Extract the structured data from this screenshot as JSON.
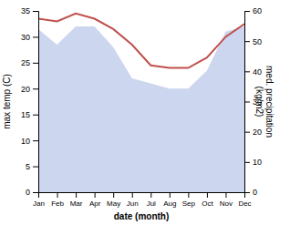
{
  "chart_data": {
    "type": "line",
    "x_label": "date (month)",
    "y_label": "max temp (C)",
    "y2_label": "med. precipitation\n(kg/m2)",
    "categories": [
      "Jan",
      "Feb",
      "Mar",
      "Apr",
      "May",
      "Jun",
      "Jul",
      "Aug",
      "Sep",
      "Oct",
      "Nov",
      "Dec"
    ],
    "series": [
      {
        "type": "area",
        "color": "#b8c4e8",
        "values": [
          31.5,
          28.5,
          32.0,
          32.0,
          28.0,
          22.0,
          21.0,
          20.0,
          20.0,
          23.5,
          31.0,
          32.0
        ]
      },
      {
        "type": "line",
        "color": "#c0504d",
        "values": [
          33.5,
          33.0,
          34.5,
          33.5,
          31.5,
          28.5,
          24.5,
          24.0,
          24.0,
          26.0,
          30.0,
          32.5
        ]
      }
    ],
    "ylim": [
      0,
      35
    ],
    "yticks": [
      0,
      5,
      10,
      15,
      20,
      25,
      30,
      35
    ],
    "y2lim": [
      0,
      60
    ],
    "y2ticks": [
      0,
      10,
      20,
      30,
      40,
      50,
      60
    ],
    "grid": false
  }
}
